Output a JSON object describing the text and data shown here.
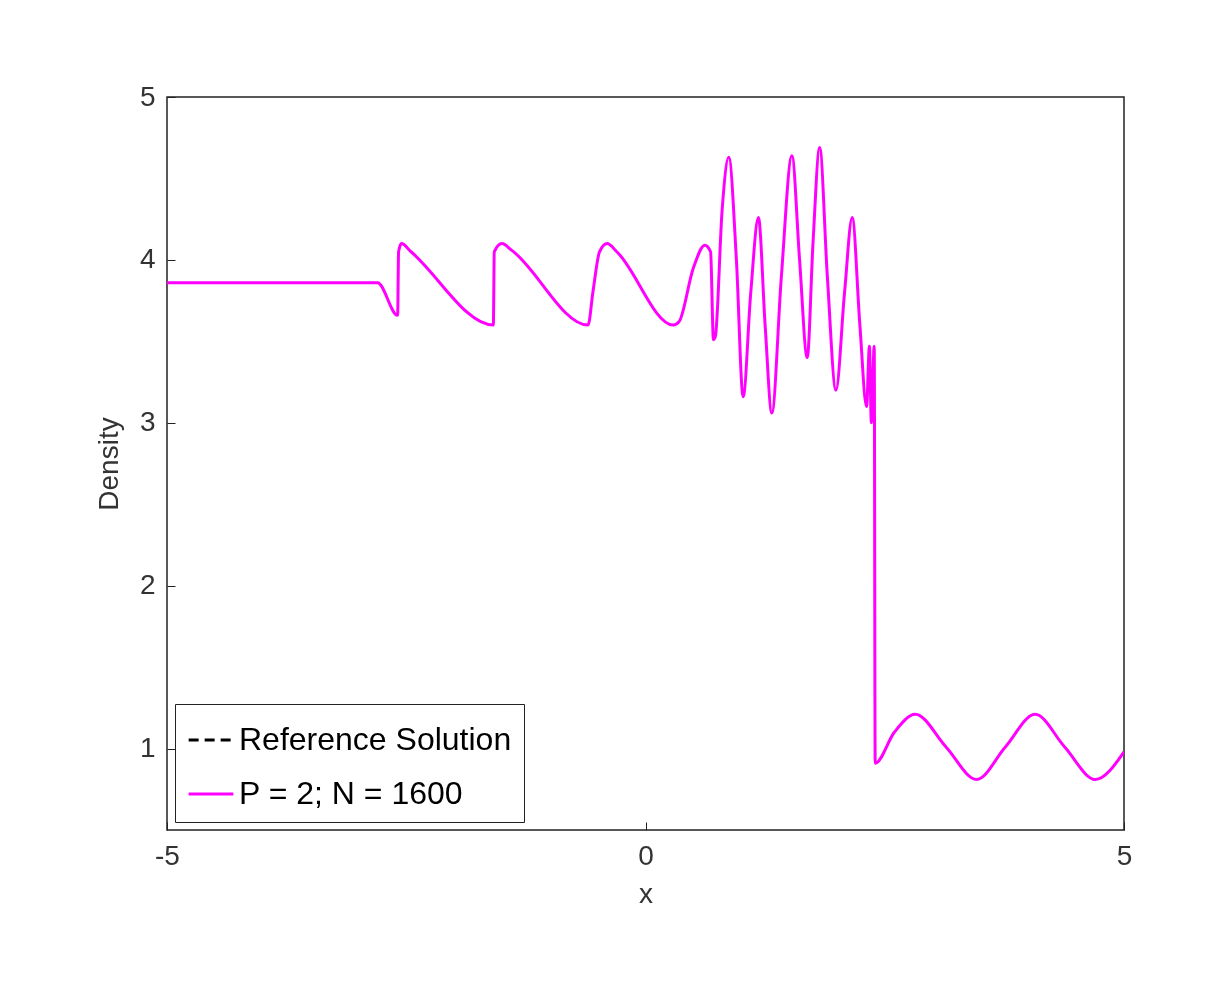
{
  "chart_data": {
    "type": "line",
    "xlabel": "x",
    "ylabel": "Density",
    "xlim": [
      -5,
      5
    ],
    "xticks": [
      -5,
      0,
      5
    ],
    "ylim": [
      0.5,
      5
    ],
    "yticks": [
      1,
      2,
      3,
      4,
      5
    ],
    "x": [
      -5,
      -2.8,
      -2.59,
      -2.58,
      -2.55,
      -2.45,
      -1.59,
      -1.58,
      -1.5,
      -1.4,
      -0.6,
      -0.55,
      -0.48,
      -0.4,
      -0.3,
      0.29,
      0.35,
      0.5,
      0.62,
      0.68,
      0.71,
      0.73,
      0.8,
      0.87,
      0.95,
      1.02,
      1.1,
      1.18,
      1.25,
      1.32,
      1.42,
      1.53,
      1.61,
      1.69,
      1.75,
      1.82,
      1.9,
      1.99,
      2.08,
      2.16,
      2.24,
      2.31,
      2.34,
      2.36,
      2.39,
      2.4,
      2.6,
      2.82,
      3.14,
      3.46,
      3.76,
      4.07,
      4.38,
      4.7,
      5
    ],
    "series": [
      {
        "name": "Reference Solution",
        "color": "#000000",
        "line_style": "dashed",
        "values": [
          null,
          null,
          null,
          null,
          null,
          null,
          null,
          null,
          null,
          null,
          null,
          null,
          null,
          null,
          null,
          null,
          null,
          null,
          null,
          null,
          null,
          null,
          null,
          null,
          null,
          null,
          null,
          null,
          null,
          null,
          null,
          null,
          null,
          null,
          null,
          null,
          null,
          null,
          null,
          null,
          null,
          null,
          null,
          null,
          null,
          null,
          null,
          null,
          null,
          null,
          null,
          null,
          null,
          null,
          null
        ]
      },
      {
        "name": "P = 2; N = 1600",
        "color": "#ff00ff",
        "line_style": "solid",
        "values": [
          3.86,
          3.86,
          3.66,
          4.05,
          4.1,
          4.05,
          3.6,
          4.05,
          4.1,
          4.06,
          3.6,
          3.8,
          4.05,
          4.1,
          4.05,
          3.6,
          3.62,
          3.95,
          4.09,
          4.05,
          3.51,
          3.53,
          4.3,
          4.63,
          4.0,
          3.16,
          3.8,
          4.26,
          3.6,
          3.06,
          3.9,
          4.64,
          4.0,
          3.4,
          4.1,
          4.69,
          3.9,
          3.2,
          3.8,
          4.26,
          3.6,
          3.1,
          3.47,
          3.0,
          3.47,
          0.91,
          1.1,
          1.21,
          1.01,
          0.81,
          1.01,
          1.21,
          1.01,
          0.81,
          0.98
        ]
      }
    ],
    "legend": "bottom left",
    "grid": false
  }
}
